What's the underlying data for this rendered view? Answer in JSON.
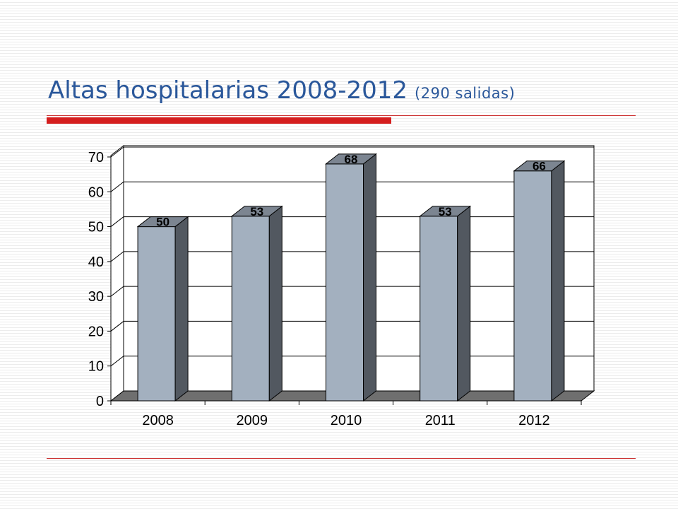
{
  "title": "Altas hospitalarias 2008-2012",
  "subtitle": "(290 salidas)",
  "colors": {
    "title": "#2a579a",
    "accent_rule": "#d51e1e",
    "bar_front": "#a3b0bf",
    "bar_side": "#525860",
    "bar_top": "#7c8591",
    "floor": "#6f6f6f"
  },
  "chart_data": {
    "type": "bar",
    "categories": [
      "2008",
      "2009",
      "2010",
      "2011",
      "2012"
    ],
    "values": [
      50,
      53,
      68,
      53,
      66
    ],
    "data_labels": [
      "50",
      "53",
      "68",
      "53",
      "66"
    ],
    "y_ticks": [
      "0",
      "10",
      "20",
      "30",
      "40",
      "50",
      "60",
      "70"
    ],
    "ylim": [
      0,
      70
    ],
    "grid": true,
    "legend": "none",
    "three_d": true
  }
}
